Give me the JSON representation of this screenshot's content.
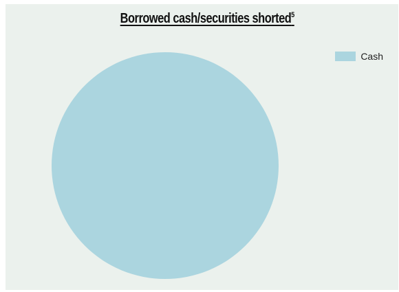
{
  "chart_data": {
    "type": "pie",
    "title": "Borrowed cash/securities shorted",
    "title_superscript": "5",
    "categories": [
      "Cash"
    ],
    "values": [
      100
    ],
    "colors": [
      "#abd5df"
    ],
    "legend": {
      "entries": [
        "Cash"
      ],
      "placement": "top-right"
    }
  },
  "colors": {
    "background": "#ebf1ed",
    "slice": "#abd5df"
  }
}
